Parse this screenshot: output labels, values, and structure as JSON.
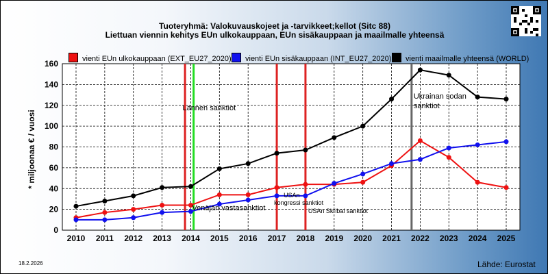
{
  "header": {
    "title_line1": "Tuoteryhmä: Valokuvauskojeet ja -tarvikkeet;kellot (Sitc 88)",
    "title_line2": "Liettuan viennin kehitys EUn ulkokauppaan, EUn sisäkauppaan ja maailmalle yhteensä"
  },
  "footer": {
    "date": "18.2.2026",
    "source": "Lähde: Eurostat"
  },
  "chart_data": {
    "type": "line",
    "title": "Tuoteryhmä: Valokuvauskojeet ja -tarvikkeet;kellot (Sitc 88)",
    "subtitle": "Liettuan viennin kehitys EUn ulkokauppaan, EUn sisäkauppaan ja maailmalle yhteensä",
    "xlabel": "",
    "ylabel": "* miljoonaa € / vuosi",
    "ylim": [
      0,
      160
    ],
    "yticks": [
      0,
      20,
      40,
      60,
      80,
      100,
      120,
      140,
      160
    ],
    "grid": true,
    "legend_position": "top",
    "categories": [
      "2010",
      "2011",
      "2012",
      "2013",
      "2014",
      "2015",
      "2016",
      "2017",
      "2018",
      "2019",
      "2020",
      "2021",
      "2022",
      "2023",
      "2024",
      "2025"
    ],
    "series": [
      {
        "name": "vienti EUn ulkokauppaan (EXT_EU27_2020)",
        "color": "#ee1111",
        "values": [
          12,
          17,
          20,
          24,
          24,
          34,
          34,
          41,
          44,
          44,
          46,
          62,
          86,
          70,
          46,
          41
        ]
      },
      {
        "name": "vienti EUn sisäkauppaan (INT_EU27_2020)",
        "color": "#1111ee",
        "values": [
          10,
          10,
          12,
          17,
          18,
          25,
          29,
          33,
          33,
          45,
          54,
          64,
          68,
          79,
          82,
          85
        ]
      },
      {
        "name": "vienti maailmalle yhteensä (WORLD)",
        "color": "#000000",
        "values": [
          23,
          28,
          33,
          41,
          42,
          59,
          64,
          74,
          77,
          89,
          100,
          126,
          154,
          149,
          128,
          126
        ]
      }
    ],
    "events": [
      {
        "position": 2013.8,
        "color": "#dd2222",
        "label": ""
      },
      {
        "position": 2014.1,
        "color": "#22dd22",
        "label": "Lännen sanktiot"
      },
      {
        "position": 2017.0,
        "color": "#dd2222",
        "label": "USAn kongressi sanktiot"
      },
      {
        "position": 2018.0,
        "color": "#dd2222",
        "label": "USAn Skribal sanktiot"
      },
      {
        "position": 2021.7,
        "color": "#666666",
        "label": "Ukrainan sodan sanktiot"
      }
    ],
    "annotations": [
      "Venäjän vastasanktiot"
    ]
  }
}
